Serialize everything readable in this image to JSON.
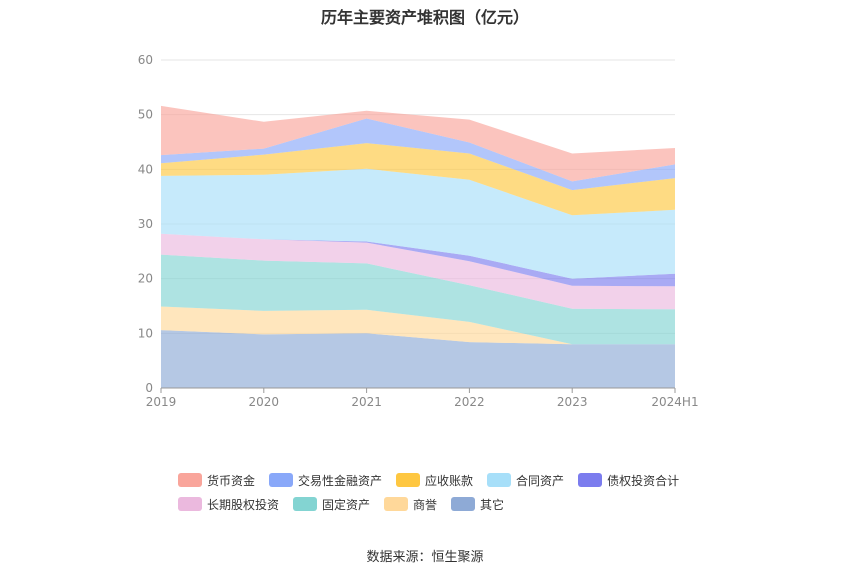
{
  "chart_data": {
    "type": "area",
    "stacked": true,
    "title": "历年主要资产堆积图（亿元）",
    "categories": [
      "2019",
      "2020",
      "2021",
      "2022",
      "2023",
      "2024H1"
    ],
    "ylim": [
      0,
      60
    ],
    "yticks": [
      0,
      10,
      20,
      30,
      40,
      50,
      60
    ],
    "grid": true,
    "legend_position": "bottom",
    "series": [
      {
        "name": "其它",
        "color": "#8eaad6",
        "values": [
          10.6,
          9.8,
          10.0,
          8.4,
          8.0,
          8.0
        ]
      },
      {
        "name": "商誉",
        "color": "#ffd89a",
        "values": [
          4.3,
          4.3,
          4.3,
          3.7,
          0.0,
          0.0
        ]
      },
      {
        "name": "固定资产",
        "color": "#83d4d2",
        "values": [
          9.5,
          9.2,
          8.5,
          6.7,
          6.5,
          6.4
        ]
      },
      {
        "name": "长期股权投资",
        "color": "#ebb9de",
        "values": [
          3.8,
          3.9,
          3.8,
          4.4,
          4.2,
          4.2
        ]
      },
      {
        "name": "债权投资合计",
        "color": "#7b7cee",
        "values": [
          0.0,
          0.0,
          0.2,
          1.0,
          1.3,
          2.3
        ]
      },
      {
        "name": "合同资产",
        "color": "#a7dff9",
        "values": [
          10.6,
          11.8,
          13.3,
          13.9,
          11.6,
          11.7
        ]
      },
      {
        "name": "应收账款",
        "color": "#fec741",
        "values": [
          2.3,
          3.7,
          4.7,
          4.8,
          4.6,
          5.8
        ]
      },
      {
        "name": "交易性金融资产",
        "color": "#89a8f9",
        "values": [
          1.5,
          1.1,
          4.5,
          2.0,
          1.6,
          2.5
        ]
      },
      {
        "name": "货币资金",
        "color": "#f9a59b",
        "values": [
          9.0,
          4.9,
          1.4,
          4.2,
          5.1,
          3.0
        ]
      }
    ],
    "legend_order": [
      "货币资金",
      "交易性金融资产",
      "应收账款",
      "合同资产",
      "债权投资合计",
      "长期股权投资",
      "固定资产",
      "商誉",
      "其它"
    ]
  },
  "source_note": "数据来源：恒生聚源"
}
